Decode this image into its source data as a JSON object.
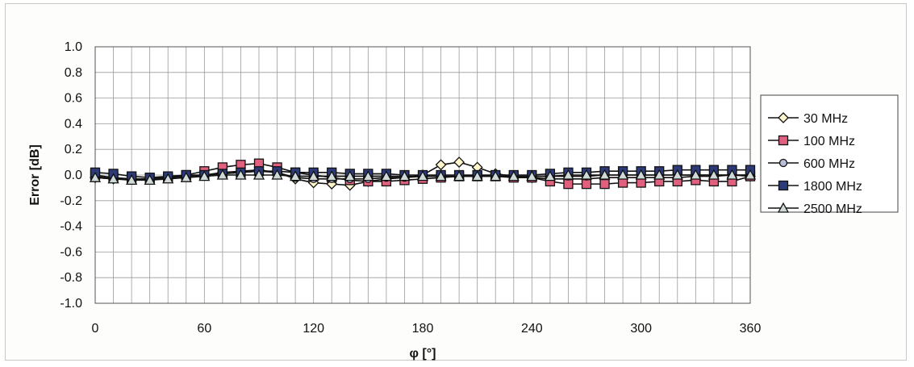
{
  "chart_data": {
    "type": "line",
    "title": "",
    "xlabel": "φ [°]",
    "ylabel": "Error [dB]",
    "xlim": [
      0,
      360
    ],
    "ylim": [
      -1.0,
      1.0
    ],
    "x_ticks": [
      "0",
      "60",
      "120",
      "180",
      "240",
      "300",
      "360"
    ],
    "y_ticks": [
      "1.0",
      "0.8",
      "0.6",
      "0.4",
      "0.2",
      "0.0",
      "-0.2",
      "-0.4",
      "-0.6",
      "-0.8",
      "-1.0"
    ],
    "grid": true,
    "legend_position": "right",
    "x": [
      0,
      10,
      20,
      30,
      40,
      50,
      60,
      70,
      80,
      90,
      100,
      110,
      120,
      130,
      140,
      150,
      160,
      170,
      180,
      190,
      200,
      210,
      220,
      230,
      240,
      250,
      260,
      270,
      280,
      290,
      300,
      310,
      320,
      330,
      340,
      350,
      360
    ],
    "series": [
      {
        "name": "30 MHz",
        "marker": "diamond",
        "color": "#fff6cc",
        "values": [
          -0.02,
          -0.03,
          -0.03,
          -0.03,
          -0.02,
          -0.01,
          0.0,
          0.02,
          0.03,
          0.04,
          0.02,
          -0.03,
          -0.06,
          -0.07,
          -0.08,
          -0.05,
          -0.03,
          -0.02,
          0.0,
          0.08,
          0.1,
          0.06,
          0.01,
          -0.01,
          -0.02,
          -0.03,
          -0.03,
          -0.03,
          -0.02,
          -0.02,
          -0.02,
          -0.02,
          -0.02,
          -0.01,
          -0.01,
          0.0,
          -0.01
        ]
      },
      {
        "name": "100 MHz",
        "marker": "square",
        "color": "#e0607e",
        "values": [
          0.0,
          -0.02,
          -0.03,
          -0.03,
          -0.02,
          0.0,
          0.03,
          0.06,
          0.08,
          0.09,
          0.06,
          0.02,
          0.0,
          -0.02,
          -0.04,
          -0.05,
          -0.05,
          -0.04,
          -0.03,
          -0.02,
          -0.01,
          -0.01,
          -0.01,
          -0.02,
          -0.02,
          -0.05,
          -0.07,
          -0.07,
          -0.07,
          -0.06,
          -0.06,
          -0.05,
          -0.05,
          -0.04,
          -0.05,
          -0.05,
          -0.01
        ]
      },
      {
        "name": "600 MHz",
        "marker": "circle",
        "color": "#b8bfd8",
        "values": [
          -0.01,
          -0.03,
          -0.03,
          -0.03,
          -0.02,
          -0.01,
          0.0,
          0.01,
          0.02,
          0.03,
          0.02,
          -0.02,
          -0.03,
          -0.03,
          -0.03,
          -0.03,
          -0.02,
          -0.02,
          -0.01,
          -0.01,
          -0.01,
          0.0,
          -0.01,
          -0.01,
          -0.01,
          -0.01,
          -0.01,
          -0.01,
          0.0,
          0.0,
          0.0,
          0.0,
          0.0,
          0.0,
          0.0,
          0.0,
          0.0
        ]
      },
      {
        "name": "1800 MHz",
        "marker": "square",
        "color": "#2c3a78",
        "values": [
          0.02,
          0.01,
          -0.01,
          -0.02,
          -0.01,
          0.0,
          0.0,
          0.01,
          0.02,
          0.03,
          0.03,
          0.02,
          0.02,
          0.02,
          0.01,
          0.01,
          0.01,
          0.0,
          0.0,
          0.0,
          0.0,
          0.0,
          0.0,
          0.0,
          0.0,
          0.01,
          0.02,
          0.02,
          0.03,
          0.03,
          0.03,
          0.03,
          0.04,
          0.04,
          0.04,
          0.04,
          0.04
        ]
      },
      {
        "name": "2500 MHz",
        "marker": "triangle",
        "color": "#cfdad8",
        "values": [
          -0.02,
          -0.03,
          -0.04,
          -0.04,
          -0.03,
          -0.02,
          -0.01,
          0.0,
          0.0,
          0.0,
          0.0,
          -0.01,
          -0.01,
          -0.01,
          -0.01,
          -0.01,
          -0.01,
          -0.01,
          -0.01,
          -0.01,
          -0.01,
          -0.01,
          -0.01,
          -0.01,
          -0.01,
          -0.01,
          0.0,
          0.0,
          0.0,
          0.0,
          0.0,
          0.0,
          0.0,
          0.0,
          0.0,
          0.0,
          0.0
        ]
      }
    ]
  }
}
